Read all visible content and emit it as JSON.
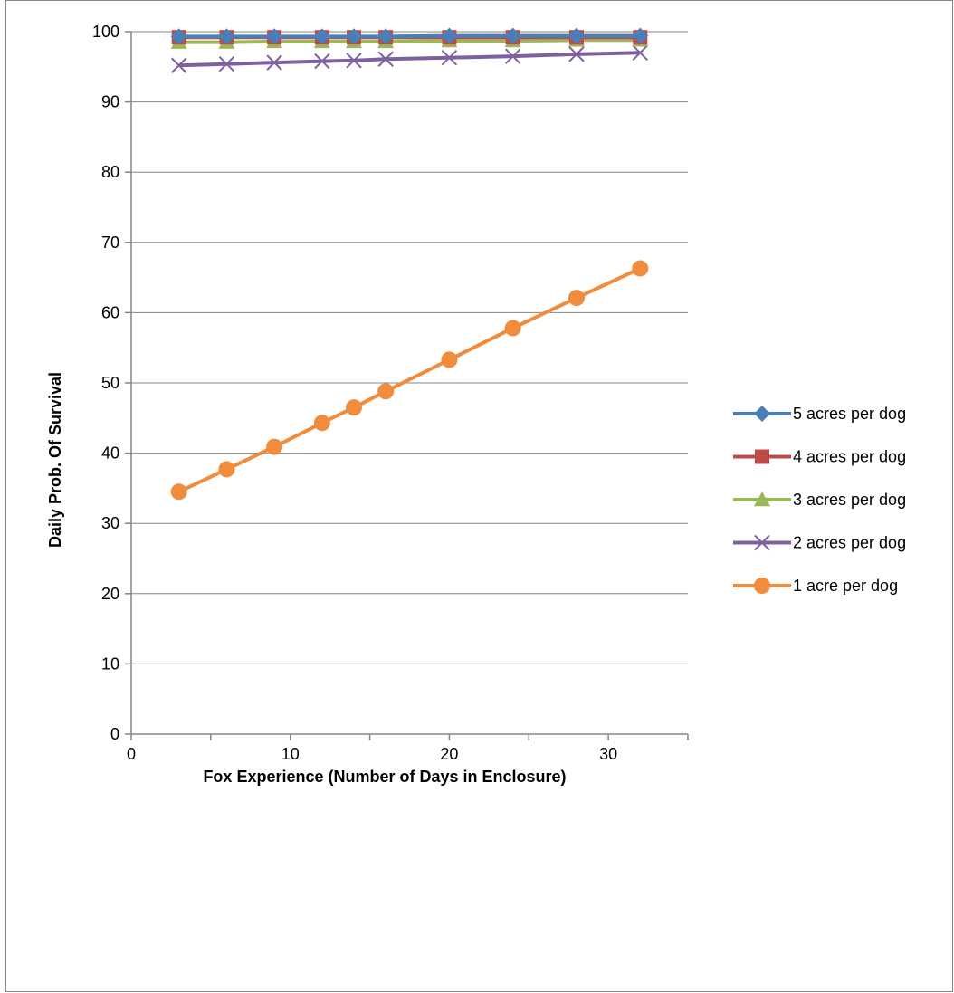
{
  "chart_data": {
    "type": "line",
    "title": "",
    "xlabel": "Fox Experience (Number of Days in Enclosure)",
    "ylabel": "Daily Prob. Of Survival",
    "xlim": [
      0,
      35
    ],
    "ylim": [
      0,
      100
    ],
    "x_ticks": [
      "0",
      "10",
      "20",
      "30"
    ],
    "y_ticks": [
      "0",
      "10",
      "20",
      "30",
      "40",
      "50",
      "60",
      "70",
      "80",
      "90",
      "100"
    ],
    "grid": "horizontal",
    "legend_position": "right",
    "x": [
      3,
      6,
      9,
      12,
      14,
      16,
      20,
      24,
      28,
      32
    ],
    "series": [
      {
        "name": "5 acres per dog",
        "color": "#4a7ebb",
        "marker": "diamond",
        "values": [
          99.3,
          99.3,
          99.3,
          99.3,
          99.3,
          99.3,
          99.4,
          99.4,
          99.4,
          99.4
        ]
      },
      {
        "name": "4 acres per dog",
        "color": "#be4b48",
        "marker": "square",
        "values": [
          99.2,
          99.2,
          99.2,
          99.2,
          99.2,
          99.2,
          99.2,
          99.2,
          99.2,
          99.2
        ]
      },
      {
        "name": "3 acres per dog",
        "color": "#98b954",
        "marker": "triangle",
        "values": [
          98.5,
          98.5,
          98.6,
          98.6,
          98.6,
          98.6,
          98.7,
          98.7,
          98.8,
          98.8
        ]
      },
      {
        "name": "2 acres per dog",
        "color": "#7d60a0",
        "marker": "x",
        "values": [
          95.2,
          95.4,
          95.6,
          95.8,
          95.9,
          96.1,
          96.3,
          96.5,
          96.8,
          97.0
        ]
      },
      {
        "name": "1 acre per dog",
        "color": "#f08c3c",
        "marker": "circle",
        "values": [
          34.5,
          37.7,
          40.9,
          44.3,
          46.5,
          48.8,
          53.3,
          57.8,
          62.1,
          66.3
        ]
      }
    ]
  }
}
